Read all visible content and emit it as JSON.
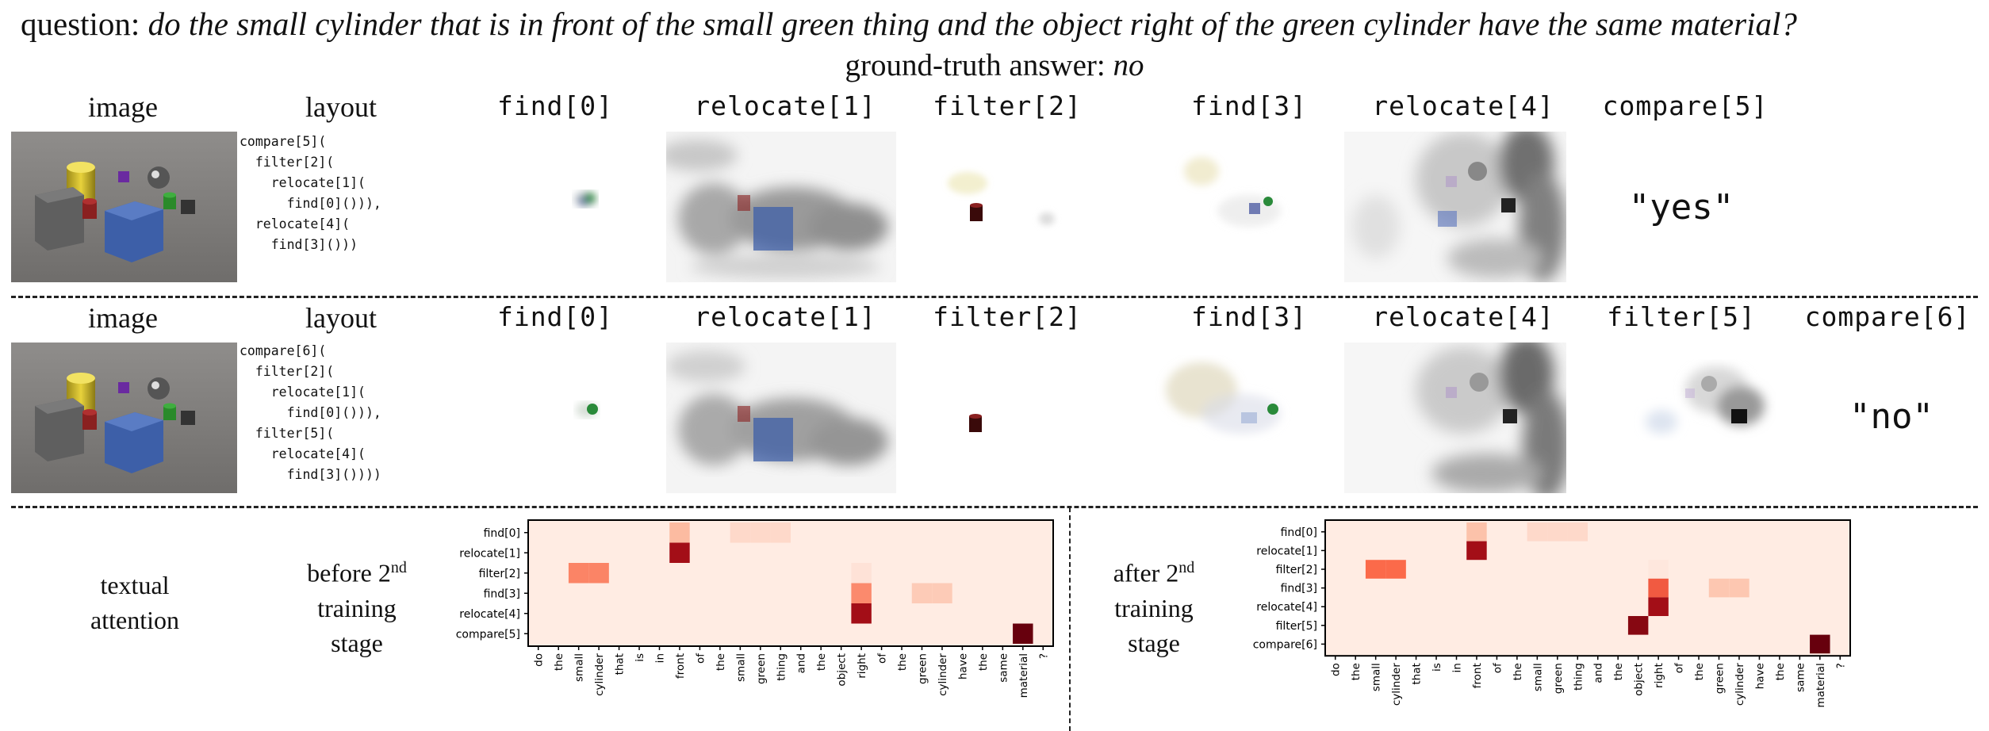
{
  "question": {
    "prefix": "question:",
    "text": "do the small cylinder that is in front of the small green thing and the object right of the green cylinder have the same material?"
  },
  "ground_truth": {
    "prefix": "ground-truth answer:",
    "answer": "no"
  },
  "row1": {
    "image_header": "image",
    "layout_header": "layout",
    "layout_code": "compare[5](\n  filter[2](\n    relocate[1](\n      find[0]())),\n  relocate[4](\n    find[3]()))",
    "modules": [
      "find[0]",
      "relocate[1]",
      "filter[2]",
      "find[3]",
      "relocate[4]",
      "compare[5]"
    ],
    "answer": "\"yes\""
  },
  "row2": {
    "image_header": "image",
    "layout_header": "layout",
    "layout_code": "compare[6](\n  filter[2](\n    relocate[1](\n      find[0]())),\n  filter[5](\n    relocate[4](\n      find[3]())))",
    "modules": [
      "find[0]",
      "relocate[1]",
      "filter[2]",
      "find[3]",
      "relocate[4]",
      "filter[5]",
      "compare[6]"
    ],
    "answer": "\"no\""
  },
  "textual": {
    "title": "textual\nattention",
    "before_label": "before 2nd training stage",
    "before": {
      "pre": "before 2",
      "sup": "nd",
      "l2": "training",
      "l3": "stage"
    },
    "after": {
      "pre": "after 2",
      "sup": "nd",
      "l2": "training",
      "l3": "stage"
    }
  },
  "chart_data": [
    {
      "type": "heatmap",
      "title": "",
      "rows": [
        "find[0]",
        "relocate[1]",
        "filter[2]",
        "find[3]",
        "relocate[4]",
        "compare[5]"
      ],
      "columns": [
        "do",
        "the",
        "small",
        "cylinder",
        "that",
        "is",
        "in",
        "front",
        "of",
        "the",
        "small",
        "green",
        "thing",
        "and",
        "the",
        "object",
        "right",
        "of",
        "the",
        "green",
        "cylinder",
        "have",
        "the",
        "same",
        "material",
        "?"
      ],
      "values": [
        [
          0.04,
          0.04,
          0.04,
          0.04,
          0.04,
          0.04,
          0.04,
          0.25,
          0.04,
          0.05,
          0.12,
          0.12,
          0.12,
          0.04,
          0.04,
          0.04,
          0.04,
          0.04,
          0.04,
          0.04,
          0.04,
          0.04,
          0.04,
          0.04,
          0.04,
          0.04
        ],
        [
          0.04,
          0.04,
          0.04,
          0.04,
          0.04,
          0.04,
          0.04,
          0.85,
          0.04,
          0.04,
          0.04,
          0.04,
          0.04,
          0.04,
          0.04,
          0.04,
          0.04,
          0.04,
          0.04,
          0.04,
          0.04,
          0.04,
          0.04,
          0.04,
          0.04,
          0.04
        ],
        [
          0.04,
          0.04,
          0.42,
          0.42,
          0.04,
          0.04,
          0.04,
          0.04,
          0.04,
          0.04,
          0.04,
          0.04,
          0.04,
          0.04,
          0.04,
          0.04,
          0.08,
          0.04,
          0.04,
          0.04,
          0.04,
          0.04,
          0.04,
          0.04,
          0.04,
          0.04
        ],
        [
          0.04,
          0.04,
          0.04,
          0.04,
          0.04,
          0.04,
          0.04,
          0.04,
          0.04,
          0.04,
          0.04,
          0.04,
          0.04,
          0.04,
          0.04,
          0.04,
          0.4,
          0.04,
          0.04,
          0.18,
          0.18,
          0.04,
          0.04,
          0.04,
          0.04,
          0.04
        ],
        [
          0.04,
          0.04,
          0.04,
          0.04,
          0.04,
          0.04,
          0.04,
          0.04,
          0.04,
          0.04,
          0.04,
          0.04,
          0.04,
          0.04,
          0.04,
          0.04,
          0.85,
          0.04,
          0.04,
          0.04,
          0.04,
          0.04,
          0.04,
          0.04,
          0.04,
          0.04
        ],
        [
          0.04,
          0.04,
          0.04,
          0.04,
          0.04,
          0.04,
          0.04,
          0.04,
          0.04,
          0.04,
          0.04,
          0.04,
          0.04,
          0.04,
          0.04,
          0.04,
          0.04,
          0.04,
          0.04,
          0.04,
          0.04,
          0.04,
          0.04,
          0.04,
          1.0,
          0.04
        ]
      ]
    },
    {
      "type": "heatmap",
      "title": "",
      "rows": [
        "find[0]",
        "relocate[1]",
        "filter[2]",
        "find[3]",
        "relocate[4]",
        "filter[5]",
        "compare[6]"
      ],
      "columns": [
        "do",
        "the",
        "small",
        "cylinder",
        "that",
        "is",
        "in",
        "front",
        "of",
        "the",
        "small",
        "green",
        "thing",
        "and",
        "the",
        "object",
        "right",
        "of",
        "the",
        "green",
        "cylinder",
        "have",
        "the",
        "same",
        "material",
        "?"
      ],
      "values": [
        [
          0.04,
          0.04,
          0.04,
          0.04,
          0.04,
          0.04,
          0.04,
          0.22,
          0.04,
          0.05,
          0.12,
          0.12,
          0.12,
          0.04,
          0.04,
          0.04,
          0.04,
          0.04,
          0.04,
          0.04,
          0.04,
          0.04,
          0.04,
          0.04,
          0.04,
          0.04
        ],
        [
          0.04,
          0.04,
          0.04,
          0.04,
          0.04,
          0.04,
          0.04,
          0.85,
          0.04,
          0.04,
          0.04,
          0.04,
          0.04,
          0.04,
          0.04,
          0.04,
          0.04,
          0.04,
          0.04,
          0.04,
          0.04,
          0.04,
          0.04,
          0.04,
          0.04,
          0.04
        ],
        [
          0.04,
          0.04,
          0.5,
          0.5,
          0.04,
          0.04,
          0.04,
          0.04,
          0.04,
          0.04,
          0.04,
          0.04,
          0.04,
          0.04,
          0.04,
          0.04,
          0.06,
          0.04,
          0.04,
          0.04,
          0.04,
          0.04,
          0.04,
          0.04,
          0.04,
          0.04
        ],
        [
          0.04,
          0.04,
          0.04,
          0.04,
          0.04,
          0.04,
          0.04,
          0.04,
          0.04,
          0.04,
          0.04,
          0.04,
          0.04,
          0.04,
          0.04,
          0.04,
          0.55,
          0.04,
          0.04,
          0.2,
          0.2,
          0.04,
          0.04,
          0.04,
          0.04,
          0.04
        ],
        [
          0.04,
          0.04,
          0.04,
          0.04,
          0.04,
          0.04,
          0.04,
          0.04,
          0.04,
          0.04,
          0.04,
          0.04,
          0.04,
          0.04,
          0.04,
          0.04,
          0.85,
          0.04,
          0.04,
          0.04,
          0.04,
          0.04,
          0.04,
          0.04,
          0.04,
          0.04
        ],
        [
          0.04,
          0.04,
          0.04,
          0.04,
          0.04,
          0.04,
          0.04,
          0.04,
          0.04,
          0.04,
          0.04,
          0.04,
          0.04,
          0.04,
          0.04,
          0.92,
          0.04,
          0.04,
          0.04,
          0.04,
          0.04,
          0.04,
          0.04,
          0.04,
          0.04,
          0.04
        ],
        [
          0.04,
          0.04,
          0.04,
          0.04,
          0.04,
          0.04,
          0.04,
          0.04,
          0.04,
          0.04,
          0.04,
          0.04,
          0.04,
          0.04,
          0.04,
          0.04,
          0.04,
          0.04,
          0.04,
          0.04,
          0.04,
          0.04,
          0.04,
          0.04,
          1.0,
          0.04
        ]
      ]
    }
  ]
}
